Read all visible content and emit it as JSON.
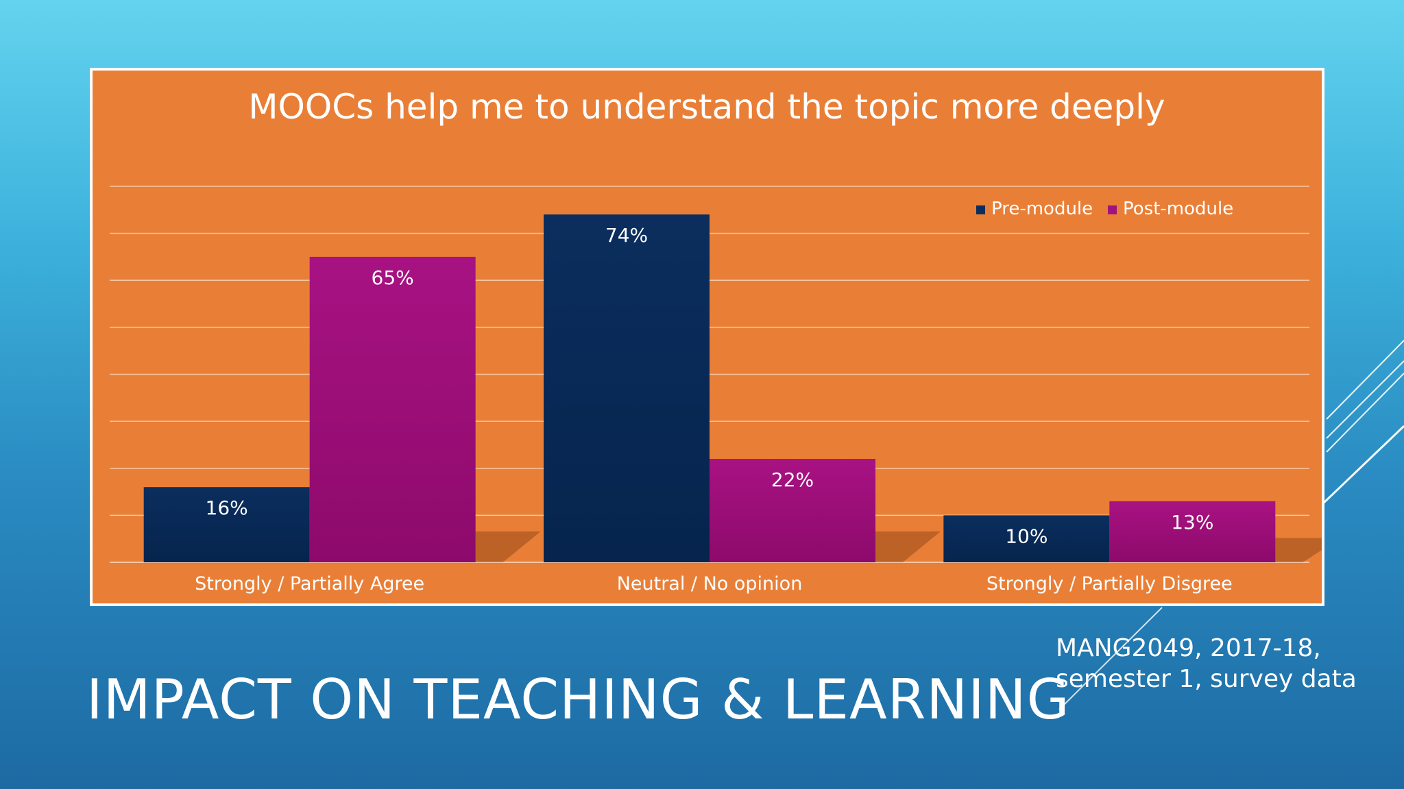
{
  "slide": {
    "title": "IMPACT ON TEACHING & LEARNING",
    "source_lines": [
      "MANG2049, 2017-18,",
      "semester 1, survey data"
    ]
  },
  "colors": {
    "chart_background": "#e97f37",
    "pre_module": "#0a2d5c",
    "post_module": "#a0127f",
    "text": "#ffffff",
    "gridline": "#f6c7a4"
  },
  "chart_data": {
    "type": "bar",
    "title": "MOOCs help me to understand the topic more deeply",
    "categories": [
      "Strongly / Partially Agree",
      "Neutral / No opinion",
      "Strongly / Partially Disgree"
    ],
    "series": [
      {
        "name": "Pre-module",
        "values": [
          16,
          74,
          10
        ],
        "labels": [
          "16%",
          "74%",
          "10%"
        ]
      },
      {
        "name": "Post-module",
        "values": [
          65,
          22,
          13
        ],
        "labels": [
          "65%",
          "22%",
          "13%"
        ]
      }
    ],
    "ylim": [
      0,
      80
    ],
    "grid": true,
    "legend": "top-right"
  }
}
